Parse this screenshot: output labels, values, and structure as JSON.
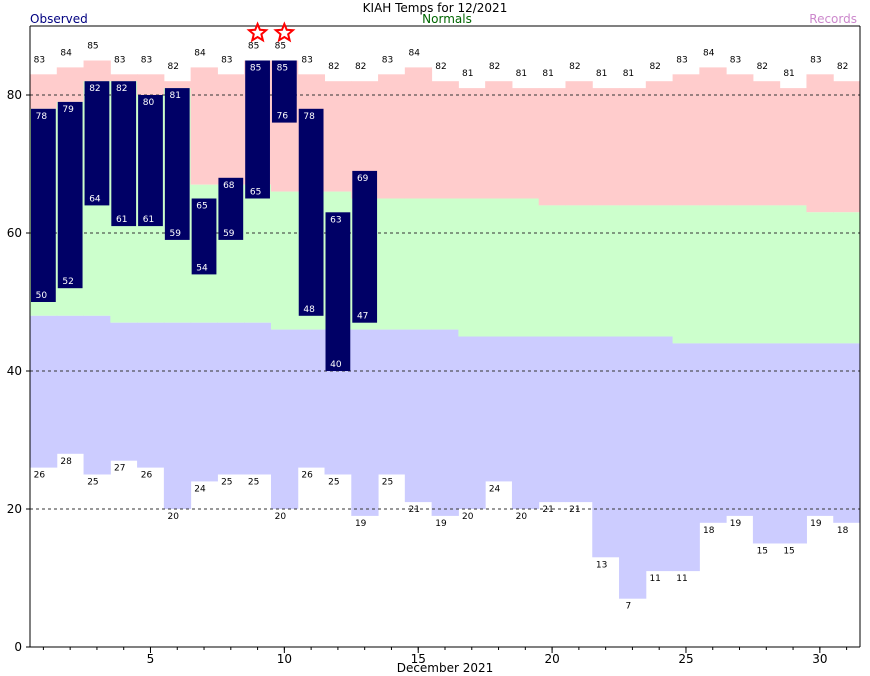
{
  "chart_data": {
    "type": "bar",
    "title": "KIAH Temps for 12/2021",
    "legend": {
      "observed": "Observed",
      "normals": "Normals",
      "records": "Records",
      "placement": "top"
    },
    "xlabel": "December 2021",
    "x_ticks": [
      5,
      10,
      15,
      20,
      25,
      30
    ],
    "y_ticks": [
      0,
      20,
      40,
      60,
      80
    ],
    "xlim": [
      0.5,
      31.5
    ],
    "ylim": [
      0,
      90
    ],
    "grid": "dashed horizontal at 20, 40, 60, 80",
    "colors": {
      "observed": "#000066",
      "normal_band": "#ccffcc",
      "record_high_band": "#ffcccc",
      "record_low_band": "#ccccff",
      "observed_text": "#000080",
      "normals_text": "#006600",
      "records_text": "#cc88cc",
      "record_star": "#ff0000"
    },
    "days": [
      1,
      2,
      3,
      4,
      5,
      6,
      7,
      8,
      9,
      10,
      11,
      12,
      13,
      14,
      15,
      16,
      17,
      18,
      19,
      20,
      21,
      22,
      23,
      24,
      25,
      26,
      27,
      28,
      29,
      30,
      31
    ],
    "record_high": [
      83,
      84,
      85,
      83,
      83,
      82,
      84,
      83,
      85,
      85,
      83,
      82,
      82,
      83,
      84,
      82,
      81,
      82,
      81,
      81,
      82,
      81,
      81,
      82,
      83,
      84,
      83,
      82,
      81,
      83,
      82
    ],
    "record_low": [
      26,
      28,
      25,
      27,
      26,
      20,
      24,
      25,
      25,
      20,
      26,
      25,
      19,
      25,
      21,
      19,
      20,
      24,
      20,
      21,
      21,
      13,
      7,
      11,
      11,
      18,
      19,
      15,
      15,
      19,
      18
    ],
    "normal_high": [
      48,
      48,
      48,
      47,
      47,
      47,
      47,
      47,
      47,
      66,
      66,
      66,
      65,
      65,
      65,
      65,
      65,
      65,
      65,
      64,
      64,
      64,
      64,
      64,
      64,
      64,
      64,
      64,
      64,
      63,
      63
    ],
    "normal_high_upper": [
      78,
      79,
      82,
      82,
      80,
      81,
      67,
      67,
      67,
      66,
      66,
      66,
      65,
      65,
      65,
      65,
      65,
      65,
      65,
      64,
      64,
      64,
      64,
      64,
      64,
      64,
      64,
      64,
      64,
      63,
      63
    ],
    "normal_low": [
      48,
      48,
      48,
      47,
      47,
      47,
      47,
      47,
      47,
      46,
      46,
      46,
      46,
      46,
      46,
      46,
      45,
      45,
      45,
      45,
      45,
      45,
      45,
      45,
      44,
      44,
      44,
      44,
      44,
      44,
      44
    ],
    "observed_high": [
      78,
      79,
      82,
      82,
      80,
      81,
      65,
      68,
      85,
      85,
      78,
      63,
      69
    ],
    "observed_low": [
      50,
      52,
      64,
      61,
      61,
      59,
      54,
      59,
      65,
      76,
      48,
      40,
      47
    ],
    "record_set_days": [
      9,
      10
    ],
    "record_star_glyph": "☆"
  }
}
